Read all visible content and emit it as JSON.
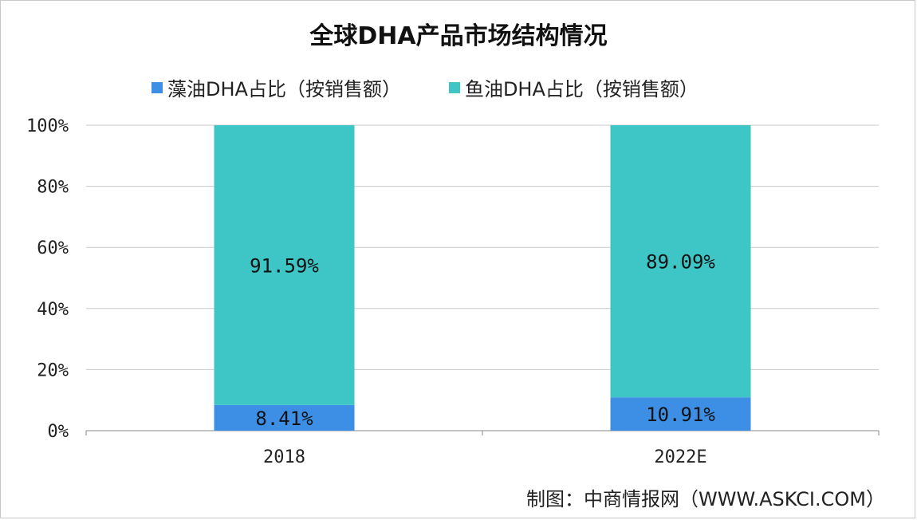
{
  "title": "全球DHA产品市场结构情况",
  "source": "制图：中商情报网（WWW.ASKCI.COM）",
  "colors": {
    "algae": "#3d8fe6",
    "fish": "#3ec5c5",
    "grid": "#c8c8c8",
    "axis": "#888888"
  },
  "chart_data": {
    "type": "bar",
    "stacked": true,
    "categories": [
      "2018",
      "2022E"
    ],
    "series": [
      {
        "name": "藻油DHA占比（按销售额）",
        "values": [
          8.41,
          10.91
        ],
        "labels": [
          "8.41%",
          "10.91%"
        ],
        "color": "#3d8fe6"
      },
      {
        "name": "鱼油DHA占比（按销售额）",
        "values": [
          91.59,
          89.09
        ],
        "labels": [
          "91.59%",
          "89.09%"
        ],
        "color": "#3ec5c5"
      }
    ],
    "ylim": [
      0,
      100
    ],
    "yticks": [
      "0%",
      "20%",
      "40%",
      "60%",
      "80%",
      "100%"
    ],
    "grid": true,
    "legend_position": "top"
  }
}
